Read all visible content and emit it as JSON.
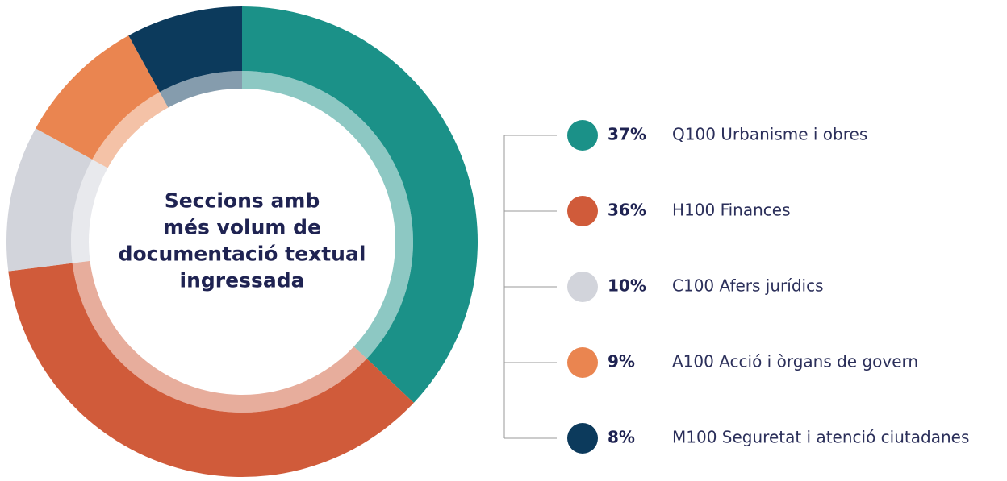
{
  "chart_data": {
    "type": "donut",
    "title": [
      "Seccions amb",
      "més volum de",
      "documentació textual",
      "ingressada"
    ],
    "categories": [
      "Q100 Urbanisme i obres",
      "H100 Finances",
      "C100 Afers jurídics",
      "A100 Acció i òrgans de govern",
      "M100 Seguretat i atenció ciutadanes"
    ],
    "values": [
      37,
      36,
      10,
      9,
      8
    ],
    "value_labels": [
      "37%",
      "36%",
      "10%",
      "9%",
      "8%"
    ],
    "colors": [
      "#1b9188",
      "#d05b3a",
      "#d2d4db",
      "#ea8550",
      "#0c3a5c"
    ]
  }
}
